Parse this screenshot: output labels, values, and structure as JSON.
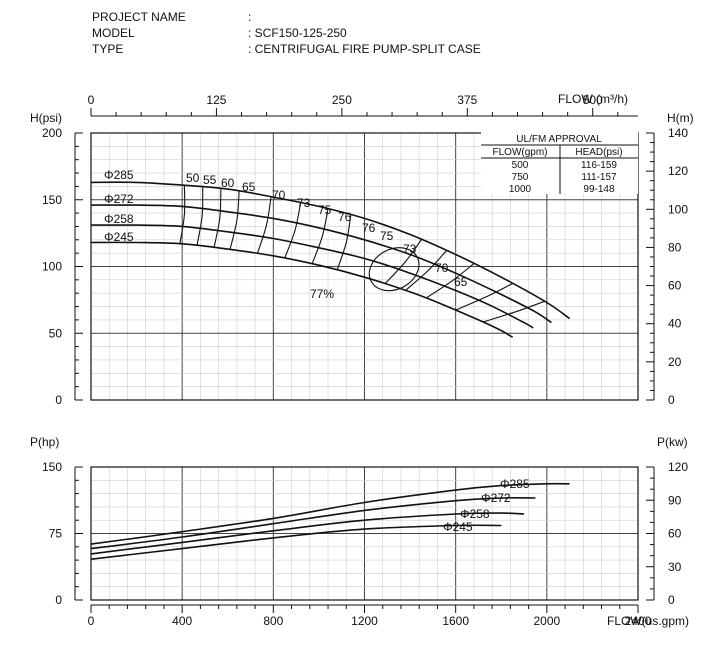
{
  "header": [
    {
      "label": "PROJECT NAME",
      "value": ":"
    },
    {
      "label": "MODEL",
      "value": ": SCF150-125-250"
    },
    {
      "label": "TYPE",
      "value": ": CENTRIFUGAL FIRE PUMP-SPLIT CASE"
    }
  ],
  "approval_table": {
    "title": "UL/FM APPROVAL",
    "columns": [
      "FLOW(gpm)",
      "HEAD(psi)"
    ],
    "rows": [
      [
        "500",
        "116-159"
      ],
      [
        "750",
        "111-157"
      ],
      [
        "1000",
        "99-148"
      ]
    ]
  },
  "chart_data": [
    {
      "type": "line",
      "panel": "head",
      "xlabel": "FLOW(us.gpm)",
      "x_top_label": "FLOW (m³/h)",
      "ylabel": "H(psi)",
      "ylabel_right": "H(m)",
      "xlim": [
        0,
        2400
      ],
      "ylim": [
        0,
        200
      ],
      "x_ticks": [
        "0",
        "400",
        "800",
        "1200",
        "1600",
        "2000",
        "2400"
      ],
      "x_top_ticks": [
        "0",
        "125",
        "250",
        "375",
        "500"
      ],
      "y_ticks": [
        "0",
        "50",
        "100",
        "150",
        "200"
      ],
      "y_right_ticks": [
        "0",
        "20",
        "40",
        "60",
        "80",
        "100",
        "120",
        "140"
      ],
      "grid": true,
      "series": [
        {
          "name": "Φ285",
          "points": [
            [
              0,
              163
            ],
            [
              200,
              163
            ],
            [
              400,
              161
            ],
            [
              600,
              158
            ],
            [
              800,
              152
            ],
            [
              1000,
              145
            ],
            [
              1200,
              136
            ],
            [
              1400,
              124
            ],
            [
              1600,
              109
            ],
            [
              1800,
              92
            ],
            [
              2000,
              73
            ],
            [
              2100,
              61
            ]
          ]
        },
        {
          "name": "Φ272",
          "points": [
            [
              0,
              146
            ],
            [
              200,
              146
            ],
            [
              400,
              145
            ],
            [
              600,
              141
            ],
            [
              800,
              136
            ],
            [
              1000,
              129
            ],
            [
              1200,
              120
            ],
            [
              1400,
              109
            ],
            [
              1600,
              95
            ],
            [
              1800,
              79
            ],
            [
              1950,
              66
            ],
            [
              2020,
              58
            ]
          ]
        },
        {
          "name": "Φ258",
          "points": [
            [
              0,
              131
            ],
            [
              200,
              131
            ],
            [
              400,
              130
            ],
            [
              600,
              126
            ],
            [
              800,
              121
            ],
            [
              1000,
              114
            ],
            [
              1200,
              106
            ],
            [
              1400,
              95
            ],
            [
              1600,
              82
            ],
            [
              1750,
              71
            ],
            [
              1900,
              58
            ],
            [
              1940,
              54
            ]
          ]
        },
        {
          "name": "Φ245",
          "points": [
            [
              0,
              118
            ],
            [
              200,
              118
            ],
            [
              400,
              117
            ],
            [
              600,
              113
            ],
            [
              800,
              108
            ],
            [
              1000,
              101
            ],
            [
              1200,
              92
            ],
            [
              1400,
              81
            ],
            [
              1550,
              71
            ],
            [
              1700,
              60
            ],
            [
              1800,
              52
            ],
            [
              1850,
              47
            ]
          ]
        }
      ],
      "efficiency_labels": [
        "50",
        "55",
        "60",
        "65",
        "70",
        "73",
        "75",
        "76",
        "77%",
        "76",
        "75",
        "73",
        "70",
        "65"
      ]
    },
    {
      "type": "line",
      "panel": "power",
      "xlabel": "FLOW(us.gpm)",
      "ylabel": "P(hp)",
      "ylabel_right": "P(kw)",
      "xlim": [
        0,
        2400
      ],
      "ylim": [
        0,
        150
      ],
      "y_ticks": [
        "0",
        "75",
        "150"
      ],
      "y_right_ticks": [
        "0",
        "30",
        "60",
        "90",
        "120"
      ],
      "grid": true,
      "series": [
        {
          "name": "Φ285",
          "points": [
            [
              0,
              63
            ],
            [
              400,
              77
            ],
            [
              800,
              92
            ],
            [
              1200,
              110
            ],
            [
              1600,
              124
            ],
            [
              1800,
              129
            ],
            [
              2000,
              131
            ],
            [
              2100,
              131
            ]
          ]
        },
        {
          "name": "Φ272",
          "points": [
            [
              0,
              58
            ],
            [
              400,
              71
            ],
            [
              800,
              86
            ],
            [
              1200,
              101
            ],
            [
              1600,
              112
            ],
            [
              1800,
              115
            ],
            [
              1950,
              115
            ]
          ]
        },
        {
          "name": "Φ258",
          "points": [
            [
              0,
              52
            ],
            [
              400,
              65
            ],
            [
              800,
              78
            ],
            [
              1200,
              90
            ],
            [
              1600,
              97
            ],
            [
              1800,
              98
            ],
            [
              1900,
              97
            ]
          ]
        },
        {
          "name": "Φ245",
          "points": [
            [
              0,
              46
            ],
            [
              400,
              58
            ],
            [
              800,
              70
            ],
            [
              1200,
              80
            ],
            [
              1600,
              84
            ],
            [
              1800,
              84
            ]
          ]
        }
      ]
    }
  ]
}
